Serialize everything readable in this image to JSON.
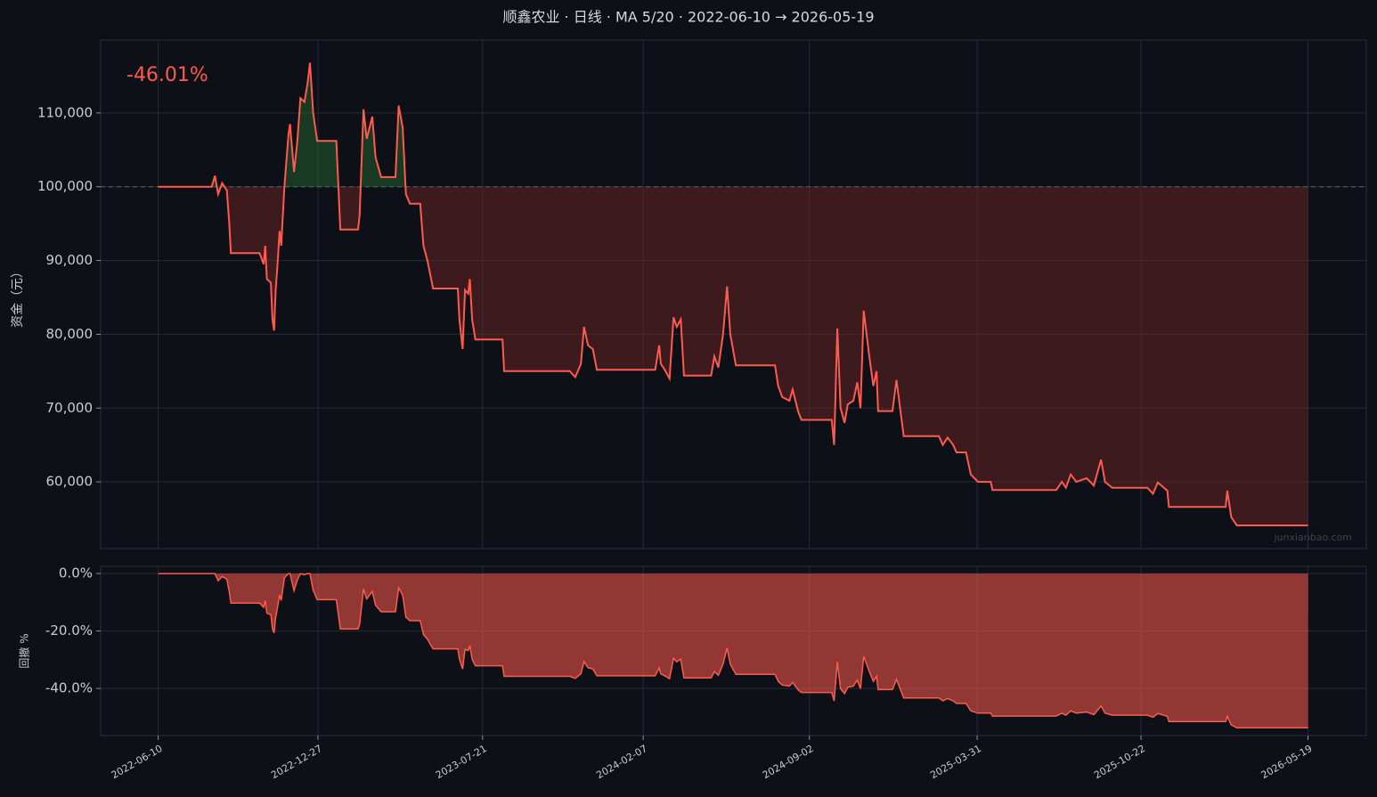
{
  "chart_data": [
    {
      "type": "line",
      "title": "顺鑫农业 · 日线 · MA 5/20 · 2022-06-10 → 2026-05-19",
      "annotation": "-46.01%",
      "watermark": "junxianbao.com",
      "ylabel": "资金（元）",
      "color": "#ff5a4e",
      "baseline": 100000,
      "grid": true,
      "xlim": [
        "2022-03-30",
        "2026-07-31"
      ],
      "xticks": [
        "2022-06-10",
        "2022-12-27",
        "2023-07-21",
        "2024-02-07",
        "2024-09-02",
        "2025-03-31",
        "2025-10-22",
        "2026-05-19"
      ],
      "ylim": [
        50960,
        119880
      ],
      "yticks": [
        {
          "value": 60000,
          "label": "60,000"
        },
        {
          "value": 70000,
          "label": "70,000"
        },
        {
          "value": 80000,
          "label": "80,000"
        },
        {
          "value": 90000,
          "label": "90,000"
        },
        {
          "value": 100000,
          "label": "100,000"
        },
        {
          "value": 110000,
          "label": "110,000"
        }
      ],
      "x": [
        "2022-06-10",
        "2022-08-16",
        "2022-08-20",
        "2022-08-24",
        "2022-08-29",
        "2022-09-04",
        "2022-09-07",
        "2022-09-09",
        "2022-10-15",
        "2022-10-20",
        "2022-10-22",
        "2022-10-24",
        "2022-10-29",
        "2022-10-31",
        "2022-11-02",
        "2022-11-04",
        "2022-11-06",
        "2022-11-09",
        "2022-11-11",
        "2022-11-15",
        "2022-11-20",
        "2022-11-22",
        "2022-11-27",
        "2022-12-01",
        "2022-12-05",
        "2022-12-10",
        "2022-12-14",
        "2022-12-17",
        "2022-12-21",
        "2022-12-26",
        "2023-01-19",
        "2023-01-24",
        "2023-02-15",
        "2023-02-17",
        "2023-02-22",
        "2023-02-26",
        "2023-03-05",
        "2023-03-09",
        "2023-03-16",
        "2023-04-03",
        "2023-04-07",
        "2023-04-12",
        "2023-04-16",
        "2023-04-21",
        "2023-05-04",
        "2023-05-08",
        "2023-05-13",
        "2023-05-20",
        "2023-06-20",
        "2023-06-22",
        "2023-06-26",
        "2023-06-29",
        "2023-07-03",
        "2023-07-05",
        "2023-07-08",
        "2023-07-12",
        "2023-08-15",
        "2023-08-17",
        "2023-11-07",
        "2023-11-14",
        "2023-11-21",
        "2023-11-25",
        "2023-11-30",
        "2023-12-06",
        "2023-12-11",
        "2024-02-22",
        "2024-02-27",
        "2024-02-29",
        "2024-03-05",
        "2024-03-11",
        "2024-03-16",
        "2024-03-20",
        "2024-03-25",
        "2024-03-29",
        "2024-05-02",
        "2024-05-06",
        "2024-05-11",
        "2024-05-17",
        "2024-05-22",
        "2024-05-26",
        "2024-06-02",
        "2024-07-21",
        "2024-07-25",
        "2024-07-30",
        "2024-08-08",
        "2024-08-12",
        "2024-08-19",
        "2024-08-23",
        "2024-09-30",
        "2024-10-03",
        "2024-10-07",
        "2024-10-11",
        "2024-10-16",
        "2024-10-20",
        "2024-10-27",
        "2024-11-01",
        "2024-11-05",
        "2024-11-09",
        "2024-11-16",
        "2024-11-21",
        "2024-11-25",
        "2024-11-27",
        "2024-12-15",
        "2024-12-20",
        "2024-12-29",
        "2025-02-11",
        "2025-02-16",
        "2025-02-22",
        "2025-03-01",
        "2025-03-05",
        "2025-03-17",
        "2025-03-23",
        "2025-04-01",
        "2025-04-17",
        "2025-04-19",
        "2025-07-08",
        "2025-07-15",
        "2025-07-20",
        "2025-07-26",
        "2025-08-02",
        "2025-08-15",
        "2025-08-24",
        "2025-09-02",
        "2025-09-07",
        "2025-09-16",
        "2025-10-30",
        "2025-11-06",
        "2025-11-12",
        "2025-11-24",
        "2025-11-26",
        "2026-02-05",
        "2026-02-07",
        "2026-02-12",
        "2026-02-19",
        "2026-05-19"
      ],
      "values": [
        100000,
        100000,
        101500,
        99000,
        100500,
        99500,
        95000,
        91000,
        91000,
        89500,
        92000,
        87500,
        87000,
        82000,
        80500,
        86000,
        89000,
        94000,
        92000,
        100000,
        107000,
        108500,
        102000,
        106000,
        112000,
        111500,
        114000,
        116800,
        110000,
        106200,
        106200,
        94200,
        94200,
        96000,
        110500,
        106500,
        109500,
        104000,
        101300,
        101300,
        111000,
        108000,
        99000,
        97700,
        97700,
        92000,
        90000,
        86200,
        86200,
        82000,
        78000,
        86000,
        85500,
        87500,
        82000,
        79300,
        79300,
        75000,
        75000,
        74200,
        76000,
        81000,
        78500,
        78000,
        75200,
        75200,
        78500,
        76000,
        75200,
        74000,
        82300,
        81000,
        82000,
        74400,
        74400,
        77000,
        75500,
        80000,
        86500,
        80000,
        75800,
        75800,
        73000,
        71500,
        71000,
        72500,
        69500,
        68400,
        68400,
        65000,
        80800,
        70000,
        68000,
        70500,
        71000,
        73500,
        70000,
        83200,
        77000,
        73000,
        75000,
        69600,
        69600,
        73800,
        66200,
        66200,
        65000,
        66000,
        65000,
        64000,
        64000,
        61000,
        60000,
        60000,
        58900,
        58900,
        60000,
        59200,
        61000,
        60000,
        60500,
        59500,
        63000,
        60000,
        59200,
        59200,
        58400,
        59900,
        58800,
        56600,
        56600,
        58800,
        55200,
        54100,
        54100
      ]
    },
    {
      "type": "area",
      "ylabel": "回撤 %",
      "color": "#ff5a4e",
      "grid": true,
      "ylim": [
        -56.4,
        2.5
      ],
      "yticks": [
        {
          "value": 0,
          "label": "0.0%"
        },
        {
          "value": -20,
          "label": "-20.0%"
        },
        {
          "value": -40,
          "label": "-40.0%"
        }
      ],
      "values": [
        0,
        0,
        0,
        -2.5,
        -1.0,
        -2.0,
        -6.4,
        -10.3,
        -10.3,
        -11.8,
        -9.4,
        -13.8,
        -14.3,
        -19.2,
        -20.7,
        -15.3,
        -12.3,
        -7.4,
        -9.4,
        -1.5,
        0,
        0,
        -6.0,
        -2.3,
        0,
        -0.4,
        0,
        0,
        -5.8,
        -9.1,
        -9.1,
        -19.3,
        -19.3,
        -17.8,
        -5.4,
        -8.8,
        -6.2,
        -11.0,
        -13.3,
        -13.3,
        -5.0,
        -7.5,
        -15.2,
        -16.4,
        -16.4,
        -21.2,
        -22.9,
        -26.2,
        -26.2,
        -29.8,
        -33.2,
        -26.4,
        -26.8,
        -25.1,
        -29.8,
        -32.1,
        -32.1,
        -35.8,
        -35.8,
        -36.5,
        -34.9,
        -30.7,
        -32.8,
        -33.2,
        -35.6,
        -35.6,
        -32.8,
        -34.9,
        -35.6,
        -36.6,
        -29.5,
        -30.7,
        -29.8,
        -36.3,
        -36.3,
        -34.1,
        -35.4,
        -31.5,
        -25.9,
        -31.5,
        -35.1,
        -35.1,
        -37.5,
        -38.8,
        -39.2,
        -37.9,
        -40.5,
        -41.4,
        -41.4,
        -44.3,
        -30.8,
        -40.1,
        -41.8,
        -39.6,
        -39.2,
        -37.1,
        -40.1,
        -28.8,
        -34.1,
        -37.5,
        -35.8,
        -40.4,
        -40.4,
        -36.8,
        -43.3,
        -43.3,
        -44.3,
        -43.5,
        -44.3,
        -45.2,
        -45.2,
        -47.8,
        -48.6,
        -48.6,
        -49.6,
        -49.6,
        -48.6,
        -49.3,
        -47.8,
        -48.6,
        -48.2,
        -49.1,
        -46.1,
        -48.6,
        -49.3,
        -49.3,
        -50.0,
        -48.7,
        -49.7,
        -51.5,
        -51.5,
        -49.7,
        -52.7,
        -53.7,
        -53.7
      ]
    }
  ]
}
